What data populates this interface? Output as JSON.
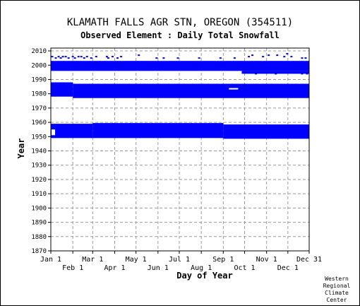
{
  "chart_data": {
    "type": "heatmap",
    "title": "KLAMATH FALLS AGR STN, OREGON   (354511)",
    "subtitle": "Observed Element : Daily Total Snowfall",
    "xlabel": "Day of Year",
    "ylabel": "Year",
    "x_range": [
      1,
      365
    ],
    "ylim": [
      1870,
      2012
    ],
    "x_ticks_top_row": [
      "Jan 1",
      "Mar 1",
      "May 1",
      "Jul 1",
      "Sep 1",
      "Nov 1",
      "Dec 31"
    ],
    "x_ticks_top_row_days": [
      1,
      60,
      121,
      182,
      244,
      305,
      365
    ],
    "x_ticks_bottom_row": [
      "Feb 1",
      "Apr 1",
      "Jun 1",
      "Aug 1",
      "Oct 1",
      "Dec 1"
    ],
    "x_ticks_bottom_row_days": [
      32,
      91,
      152,
      213,
      274,
      335
    ],
    "y_ticks": [
      1870,
      1880,
      1890,
      1900,
      1910,
      1920,
      1930,
      1940,
      1950,
      1960,
      1970,
      1980,
      1990,
      2000,
      2010
    ],
    "grid": true,
    "color": "#0000ff",
    "blocks": [
      {
        "day_start": 1,
        "day_end": 60,
        "year_start": 1949,
        "year_end": 1959
      },
      {
        "day_start": 60,
        "day_end": 244,
        "year_start": 1949,
        "year_end": 1959.5
      },
      {
        "day_start": 244,
        "day_end": 365,
        "year_start": 1948.5,
        "year_end": 1958.5
      },
      {
        "day_start": 1,
        "day_end": 32,
        "year_start": 1978,
        "year_end": 1988
      },
      {
        "day_start": 32,
        "day_end": 365,
        "year_start": 1977,
        "year_end": 1987
      },
      {
        "day_start": 1,
        "day_end": 365,
        "year_start": 1996,
        "year_end": 2003
      },
      {
        "day_start": 270,
        "day_end": 365,
        "year_start": 1994,
        "year_end": 1996
      }
    ],
    "gaps": [
      {
        "day_start": 252,
        "day_end": 265,
        "year_start": 1983,
        "year_end": 1984
      },
      {
        "day_start": 2,
        "day_end": 7,
        "year_start": 1951,
        "year_end": 1955
      }
    ],
    "scatter_points": [
      [
        3,
        2006
      ],
      [
        8,
        2005
      ],
      [
        12,
        2006
      ],
      [
        15,
        2005
      ],
      [
        18,
        2006
      ],
      [
        22,
        2006
      ],
      [
        26,
        2005
      ],
      [
        32,
        2006
      ],
      [
        35,
        2005
      ],
      [
        40,
        2006
      ],
      [
        44,
        2006
      ],
      [
        48,
        2005
      ],
      [
        52,
        2006
      ],
      [
        58,
        2005
      ],
      [
        65,
        2006
      ],
      [
        80,
        2006
      ],
      [
        82,
        2005
      ],
      [
        88,
        2006
      ],
      [
        95,
        2005
      ],
      [
        100,
        2006
      ],
      [
        125,
        2007
      ],
      [
        150,
        2005
      ],
      [
        160,
        2005
      ],
      [
        180,
        2005
      ],
      [
        210,
        2005
      ],
      [
        240,
        2005
      ],
      [
        260,
        2005
      ],
      [
        280,
        2006
      ],
      [
        285,
        2007
      ],
      [
        300,
        2006
      ],
      [
        308,
        2007
      ],
      [
        320,
        2007
      ],
      [
        330,
        2006
      ],
      [
        334,
        2008
      ],
      [
        340,
        2006
      ],
      [
        355,
        2005
      ],
      [
        360,
        2005
      ],
      [
        2,
        1998
      ],
      [
        6,
        1997
      ],
      [
        9,
        1998
      ],
      [
        14,
        1997
      ],
      [
        19,
        1997
      ],
      [
        23,
        1998
      ],
      [
        28,
        1997
      ],
      [
        30,
        1998
      ],
      [
        75,
        1997
      ],
      [
        81,
        1998
      ],
      [
        86,
        1999
      ],
      [
        90,
        1998
      ],
      [
        98,
        1998
      ],
      [
        290,
        1994
      ],
      [
        298,
        1995
      ],
      [
        310,
        1995
      ],
      [
        318,
        1994
      ],
      [
        330,
        1995
      ],
      [
        345,
        1995
      ],
      [
        355,
        1994
      ],
      [
        362,
        1994
      ]
    ],
    "credit": [
      "Western",
      "Regional",
      "Climate",
      "Center"
    ]
  }
}
